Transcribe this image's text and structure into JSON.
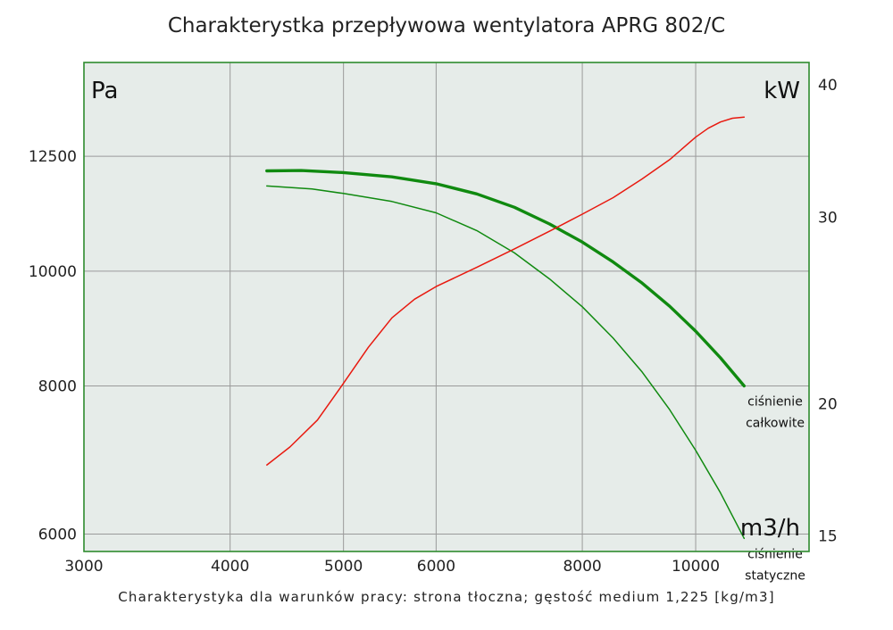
{
  "title": "Charakterystka przepływowa wentylatora APRG 802/C",
  "caption": "Charakterystyka dla warunków pracy: strona tłoczna; gęstość medium 1,225 [kg/m3]",
  "colors": {
    "plot_bg": "#e6ece9",
    "frame": "#2e8b2e",
    "grid": "#9a9a9a",
    "total_pressure": "#108a10",
    "static_pressure": "#108a10",
    "power": "#e8190f"
  },
  "chart_data": {
    "type": "line",
    "x_scale": "log",
    "xlim": [
      3000,
      12500
    ],
    "x_ticks": [
      3000,
      4000,
      5000,
      6000,
      8000,
      10000
    ],
    "x_tick_labels": [
      "3000",
      "4000",
      "5000",
      "6000",
      "8000",
      "10000"
    ],
    "y_left_scale": "log",
    "y_left_lim": [
      5800,
      15000
    ],
    "y_left_ticks": [
      6000,
      8000,
      10000,
      12500
    ],
    "y_left_tick_labels": [
      "6000",
      "8000",
      "10000",
      "12500"
    ],
    "y_right_scale": "log",
    "y_right_lim": [
      14.5,
      42
    ],
    "y_right_ticks": [
      15,
      20,
      30,
      40
    ],
    "y_right_tick_labels": [
      "15",
      "20",
      "30",
      "40"
    ],
    "corner_labels": {
      "y_left_unit": "Pa",
      "y_right_unit": "kW",
      "x_unit": "m3/h"
    },
    "series": [
      {
        "name": "ciśnienie całkowite",
        "label_lines": [
          "ciśnienie",
          "całkowite"
        ],
        "axis": "left",
        "style": "thick",
        "x": [
          4300,
          4600,
          5000,
          5500,
          6000,
          6500,
          7000,
          7500,
          8000,
          8500,
          9000,
          9500,
          10000,
          10500,
          11000
        ],
        "y": [
          12150,
          12160,
          12110,
          12010,
          11850,
          11620,
          11320,
          10960,
          10580,
          10180,
          9770,
          9340,
          8900,
          8450,
          8000
        ]
      },
      {
        "name": "ciśnienie statyczne",
        "label_lines": [
          "ciśnienie",
          "statyczne"
        ],
        "axis": "left",
        "style": "thin",
        "x": [
          4300,
          4700,
          5000,
          5500,
          6000,
          6500,
          7000,
          7500,
          8000,
          8500,
          9000,
          9500,
          10000,
          10500,
          11000
        ],
        "y": [
          11800,
          11730,
          11630,
          11450,
          11200,
          10820,
          10360,
          9850,
          9330,
          8780,
          8220,
          7640,
          7060,
          6500,
          5950
        ]
      },
      {
        "name": "power",
        "axis": "right",
        "style": "thin",
        "x": [
          4300,
          4500,
          4750,
          5000,
          5250,
          5500,
          5750,
          6000,
          6500,
          7000,
          7500,
          8000,
          8500,
          9000,
          9500,
          10000,
          10250,
          10500,
          10750,
          11000
        ],
        "y": [
          17.5,
          18.2,
          19.3,
          20.9,
          22.6,
          24.1,
          25.1,
          25.8,
          26.9,
          28.0,
          29.1,
          30.2,
          31.3,
          32.6,
          34.0,
          35.7,
          36.4,
          36.9,
          37.2,
          37.3
        ]
      }
    ]
  }
}
